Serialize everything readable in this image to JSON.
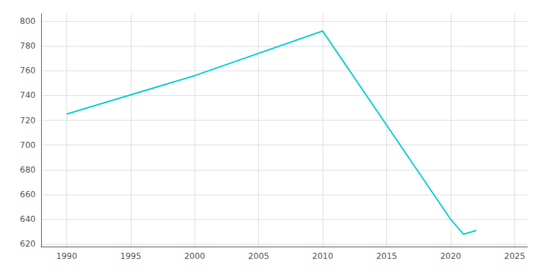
{
  "chart_data": {
    "type": "line",
    "x": [
      1990,
      2000,
      2010,
      2020,
      2021,
      2022
    ],
    "values": [
      725,
      756,
      792,
      640,
      628,
      631
    ],
    "color": "#00CED1",
    "xlim": [
      1988,
      2026
    ],
    "ylim": [
      618,
      806
    ],
    "xticks": [
      1990,
      1995,
      2000,
      2005,
      2010,
      2015,
      2020,
      2025
    ],
    "yticks": [
      620,
      640,
      660,
      680,
      700,
      720,
      740,
      760,
      780,
      800
    ],
    "grid": true
  }
}
